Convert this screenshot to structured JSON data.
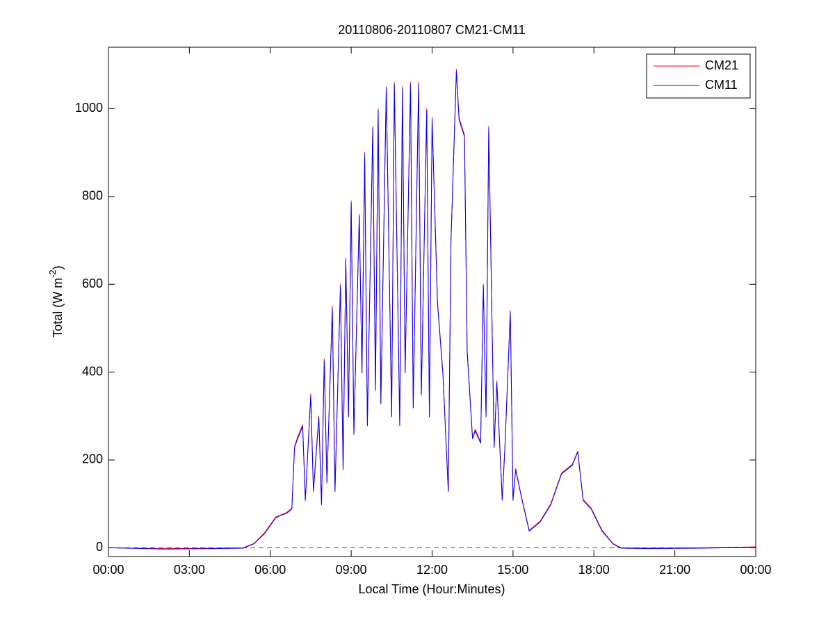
{
  "chart_data": {
    "type": "line",
    "title": "20110806-20110807 CM21-CM11",
    "x_label": "Local Time (Hour:Minutes)",
    "y_label": [
      "Total (W m",
      "-2",
      ")"
    ],
    "xlim": [
      0,
      24
    ],
    "xticks": [
      {
        "value": 0,
        "label": "00:00"
      },
      {
        "value": 3,
        "label": "03:00"
      },
      {
        "value": 6,
        "label": "06:00"
      },
      {
        "value": 9,
        "label": "09:00"
      },
      {
        "value": 12,
        "label": "12:00"
      },
      {
        "value": 15,
        "label": "15:00"
      },
      {
        "value": 18,
        "label": "18:00"
      },
      {
        "value": 21,
        "label": "21:00"
      },
      {
        "value": 24,
        "label": "00:00"
      }
    ],
    "ylim": [
      -20,
      1140
    ],
    "yticks": [
      0,
      200,
      400,
      600,
      800,
      1000
    ],
    "grid": false,
    "legend": "upper right",
    "reference_line": {
      "value": 0,
      "color": "#ff0000",
      "style": "dashed"
    },
    "x": [
      0,
      2,
      4,
      5,
      5.4,
      5.8,
      6.2,
      6.4,
      6.6,
      6.8,
      6.9,
      7.0,
      7.2,
      7.3,
      7.5,
      7.6,
      7.8,
      7.9,
      8.0,
      8.1,
      8.3,
      8.4,
      8.6,
      8.7,
      8.8,
      8.9,
      9.0,
      9.1,
      9.3,
      9.4,
      9.5,
      9.6,
      9.8,
      9.9,
      10.0,
      10.1,
      10.3,
      10.5,
      10.6,
      10.8,
      10.9,
      11.0,
      11.2,
      11.3,
      11.5,
      11.6,
      11.8,
      11.9,
      12.0,
      12.2,
      12.4,
      12.6,
      12.7,
      12.9,
      13.0,
      13.2,
      13.3,
      13.5,
      13.6,
      13.8,
      13.9,
      14.0,
      14.1,
      14.3,
      14.4,
      14.6,
      14.7,
      14.9,
      15.0,
      15.1,
      15.3,
      15.6,
      15.8,
      16.0,
      16.4,
      16.8,
      17.2,
      17.4,
      17.6,
      17.9,
      18.3,
      18.7,
      19.0,
      20,
      22,
      24
    ],
    "series": [
      {
        "name": "CM21",
        "color": "#ff0000",
        "values": [
          0,
          -2,
          -1,
          0,
          10,
          35,
          70,
          75,
          80,
          90,
          230,
          250,
          280,
          110,
          350,
          130,
          300,
          100,
          430,
          150,
          550,
          130,
          600,
          180,
          660,
          300,
          790,
          260,
          760,
          400,
          900,
          280,
          960,
          360,
          1000,
          330,
          1050,
          300,
          1060,
          280,
          1050,
          400,
          1060,
          320,
          1060,
          350,
          1000,
          300,
          980,
          560,
          400,
          130,
          700,
          1090,
          980,
          940,
          450,
          250,
          270,
          240,
          600,
          300,
          960,
          230,
          380,
          110,
          230,
          540,
          110,
          180,
          120,
          40,
          50,
          60,
          100,
          170,
          190,
          220,
          110,
          90,
          40,
          10,
          0,
          -1,
          0,
          2
        ]
      },
      {
        "name": "CM11",
        "color": "#0000ff",
        "values": [
          0,
          -3,
          -2,
          -1,
          9,
          33,
          68,
          74,
          78,
          88,
          228,
          246,
          276,
          108,
          346,
          128,
          296,
          98,
          426,
          148,
          545,
          128,
          596,
          178,
          655,
          298,
          785,
          258,
          755,
          398,
          895,
          278,
          955,
          358,
          996,
          328,
          1046,
          298,
          1055,
          278,
          1046,
          398,
          1055,
          318,
          1056,
          348,
          995,
          298,
          976,
          556,
          396,
          128,
          696,
          1085,
          975,
          936,
          446,
          248,
          266,
          238,
          596,
          298,
          955,
          228,
          376,
          108,
          228,
          536,
          108,
          178,
          118,
          38,
          48,
          58,
          98,
          168,
          188,
          218,
          108,
          88,
          38,
          9,
          -1,
          -2,
          -1,
          1
        ]
      }
    ]
  }
}
